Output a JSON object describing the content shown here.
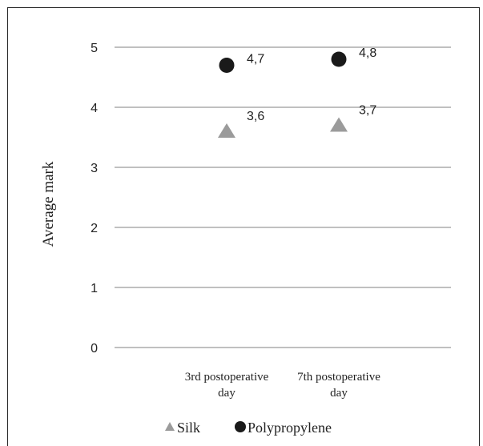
{
  "chart_data": {
    "type": "scatter",
    "ylabel": "Average mark",
    "categories": [
      "3rd postoperative day",
      "7th postoperative day"
    ],
    "category_lines": [
      [
        "3rd postoperative",
        "day"
      ],
      [
        "7th postoperative",
        "day"
      ]
    ],
    "ylim": [
      0,
      5
    ],
    "yticks": [
      "0",
      "1",
      "2",
      "3",
      "4",
      "5"
    ],
    "grid": true,
    "legend_position": "bottom",
    "series": [
      {
        "name": "Silk",
        "values": [
          3.6,
          3.7
        ],
        "labels": [
          "3,6",
          "3,7"
        ],
        "marker": "triangle",
        "color": "#9b9b9b"
      },
      {
        "name": "Polypropylene",
        "values": [
          4.7,
          4.8
        ],
        "labels": [
          "4,7",
          "4,8"
        ],
        "marker": "circle",
        "color": "#1a1a1a"
      }
    ]
  }
}
